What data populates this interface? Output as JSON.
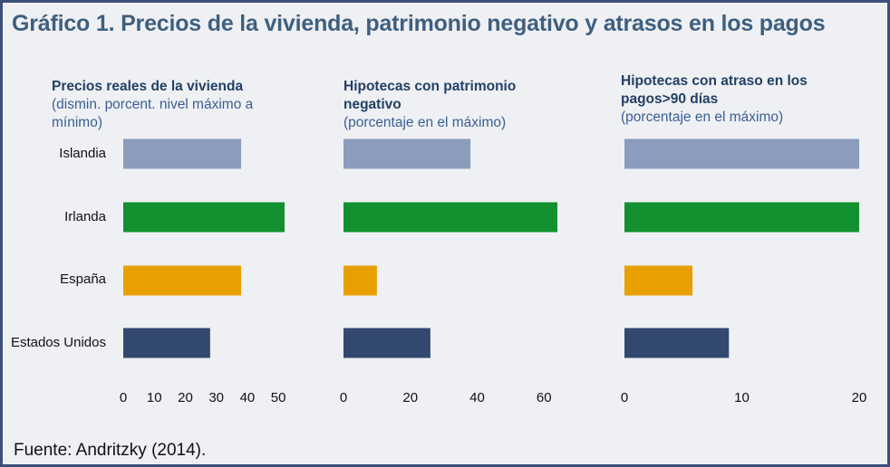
{
  "title": "Gráfico 1. Precios de la vivienda, patrimonio negativo y atrasos en los pagos",
  "source": "Fuente: Andritzky (2014).",
  "categories": [
    "Islandia",
    "Irlanda",
    "España",
    "Estados Unidos"
  ],
  "colors": [
    "#8b9cbd",
    "#13902f",
    "#e8a000",
    "#33486e"
  ],
  "panels": [
    {
      "title_bold": "Precios reales de la vivienda",
      "subtitle": "(dismin. porcent. nivel máximo a mínimo)"
    },
    {
      "title_bold": "Hipotecas con patrimonio negativo",
      "subtitle": "(porcentaje en el máximo)"
    },
    {
      "title_bold": "Hipotecas con atraso en los pagos>90 días",
      "subtitle": "(porcentaje en el máximo)"
    }
  ],
  "chart_data": [
    {
      "type": "bar",
      "orientation": "horizontal",
      "title": "Precios reales de la vivienda",
      "subtitle": "(dismin. porcent. nivel máximo a mínimo)",
      "categories": [
        "Islandia",
        "Irlanda",
        "España",
        "Estados Unidos"
      ],
      "values": [
        38,
        52,
        38,
        28
      ],
      "xlim": [
        0,
        52
      ],
      "ticks": [
        0,
        10,
        20,
        30,
        40,
        50
      ]
    },
    {
      "type": "bar",
      "orientation": "horizontal",
      "title": "Hipotecas con patrimonio negativo",
      "subtitle": "(porcentaje en el máximo)",
      "categories": [
        "Islandia",
        "Irlanda",
        "España",
        "Estados Unidos"
      ],
      "values": [
        38,
        64,
        10,
        26
      ],
      "xlim": [
        0,
        64
      ],
      "ticks": [
        0,
        20,
        40,
        60
      ]
    },
    {
      "type": "bar",
      "orientation": "horizontal",
      "title": "Hipotecas con atraso en los pagos>90 días",
      "subtitle": "(porcentaje en el máximo)",
      "categories": [
        "Islandia",
        "Irlanda",
        "España",
        "Estados Unidos"
      ],
      "values": [
        20,
        20,
        5.8,
        8.9
      ],
      "xlim": [
        0,
        20
      ],
      "ticks": [
        0,
        10,
        20
      ]
    }
  ]
}
